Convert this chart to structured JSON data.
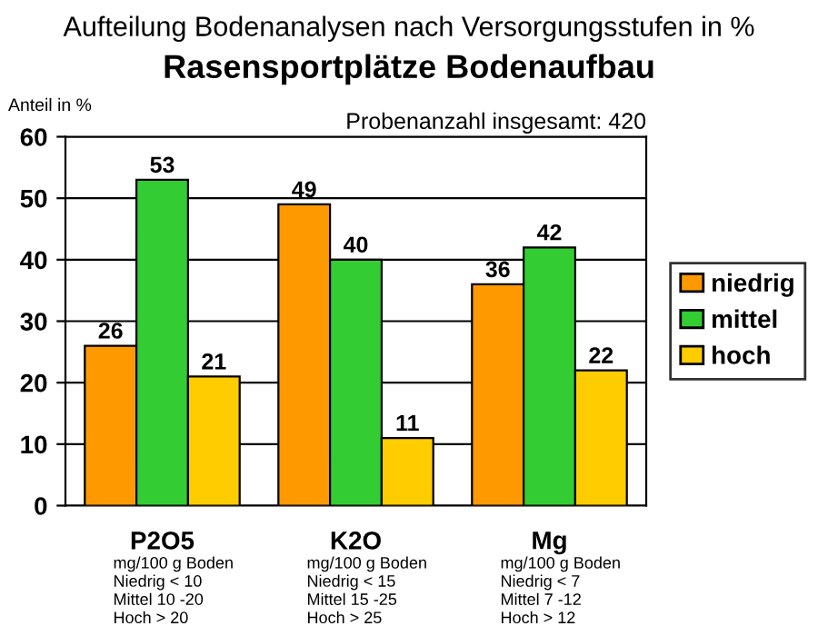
{
  "chart_data": {
    "type": "bar",
    "subtitle": "Aufteilung Bodenanalysen nach Versorgungsstufen in %",
    "title": "Rasensportplätze Bodenaufbau",
    "ylabel": "Anteil in %",
    "categories": [
      "P2O5",
      "K2O",
      "Mg"
    ],
    "series": [
      {
        "name": "niedrig",
        "color": "#ff9900",
        "values": [
          26,
          49,
          36
        ]
      },
      {
        "name": "mittel",
        "color": "#33cc33",
        "values": [
          53,
          40,
          42
        ]
      },
      {
        "name": "hoch",
        "color": "#ffcc00",
        "values": [
          21,
          11,
          22
        ]
      }
    ],
    "ylim": [
      0,
      60
    ],
    "yticks": [
      0,
      10,
      20,
      30,
      40,
      50,
      60
    ],
    "grid": "y",
    "legend": "right",
    "data_labels": true,
    "annotations": [
      "Probenanzahl insgesamt: 420",
      "mg/100 g Boden\nNiedrig < 10\nMittel 10 -20\nHoch > 20",
      "mg/100 g Boden\nNiedrig < 15\nMittel 15 -25\nHoch > 25",
      "mg/100 g Boden\nNiedrig < 7\nMittel 7 -12\nHoch > 12"
    ]
  }
}
